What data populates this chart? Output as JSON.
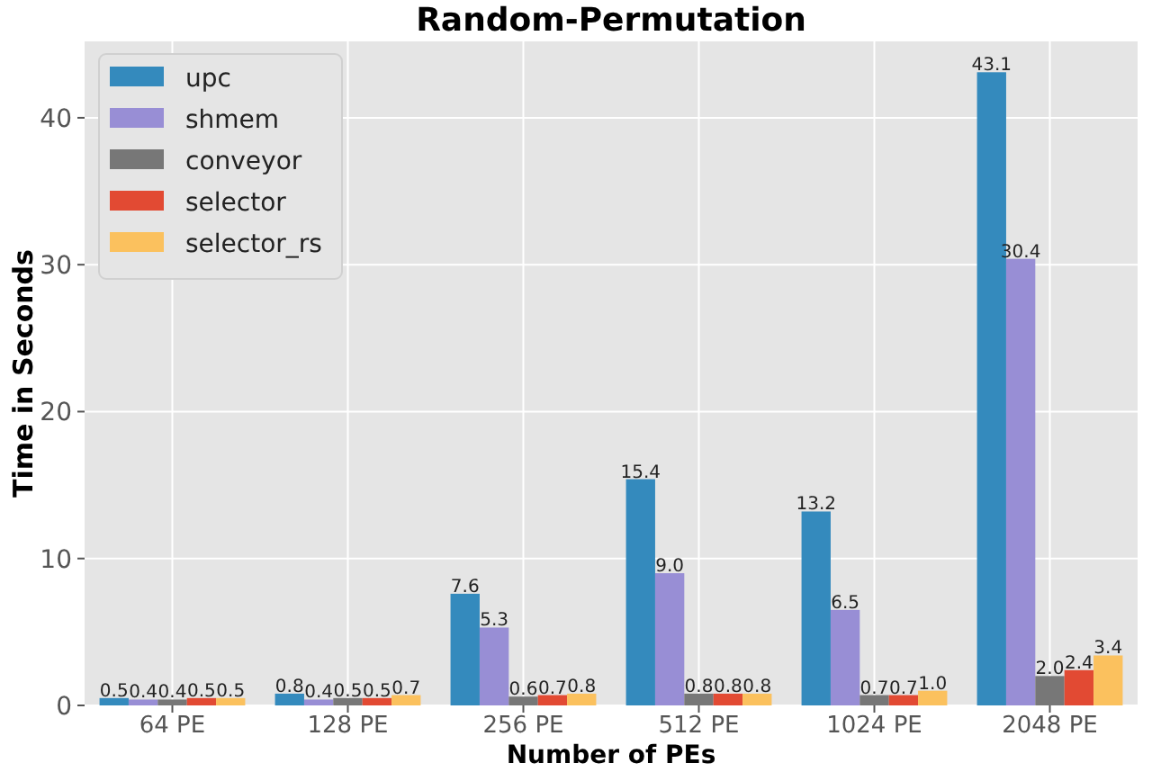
{
  "chart_data": {
    "type": "bar",
    "title": "Random-Permutation",
    "xlabel": "Number of PEs",
    "ylabel": "Time in Seconds",
    "categories": [
      "64 PE",
      "128 PE",
      "256 PE",
      "512 PE",
      "1024 PE",
      "2048 PE"
    ],
    "series": [
      {
        "name": "upc",
        "color": "#348abd",
        "values": [
          0.5,
          0.8,
          7.6,
          15.4,
          13.2,
          43.1
        ],
        "value_labels": [
          "0.5",
          "0.8",
          "7.6",
          "15.4",
          "13.2",
          "43.1"
        ]
      },
      {
        "name": "shmem",
        "color": "#988ed5",
        "values": [
          0.4,
          0.4,
          5.3,
          9.0,
          6.5,
          30.4
        ],
        "value_labels": [
          "0.4",
          "0.4",
          "5.3",
          "9.0",
          "6.5",
          "30.4"
        ]
      },
      {
        "name": "conveyor",
        "color": "#777777",
        "values": [
          0.4,
          0.5,
          0.6,
          0.8,
          0.7,
          2.0
        ],
        "value_labels": [
          "0.4",
          "0.5",
          "0.6",
          "0.8",
          "0.7",
          "2.0"
        ]
      },
      {
        "name": "selector",
        "color": "#e24a33",
        "values": [
          0.5,
          0.5,
          0.7,
          0.8,
          0.7,
          2.4
        ],
        "value_labels": [
          "0.5",
          "0.5",
          "0.7",
          "0.8",
          "0.7",
          "2.4"
        ]
      },
      {
        "name": "selector_rs",
        "color": "#fbc15e",
        "values": [
          0.5,
          0.7,
          0.8,
          0.8,
          1.0,
          3.4
        ],
        "value_labels": [
          "0.5",
          "0.7",
          "0.8",
          "0.8",
          "1.0",
          "3.4"
        ]
      }
    ],
    "ylim": [
      0,
      45.2
    ],
    "yticks": [
      0,
      10,
      20,
      30,
      40
    ],
    "grid": true,
    "legend": "top left"
  }
}
